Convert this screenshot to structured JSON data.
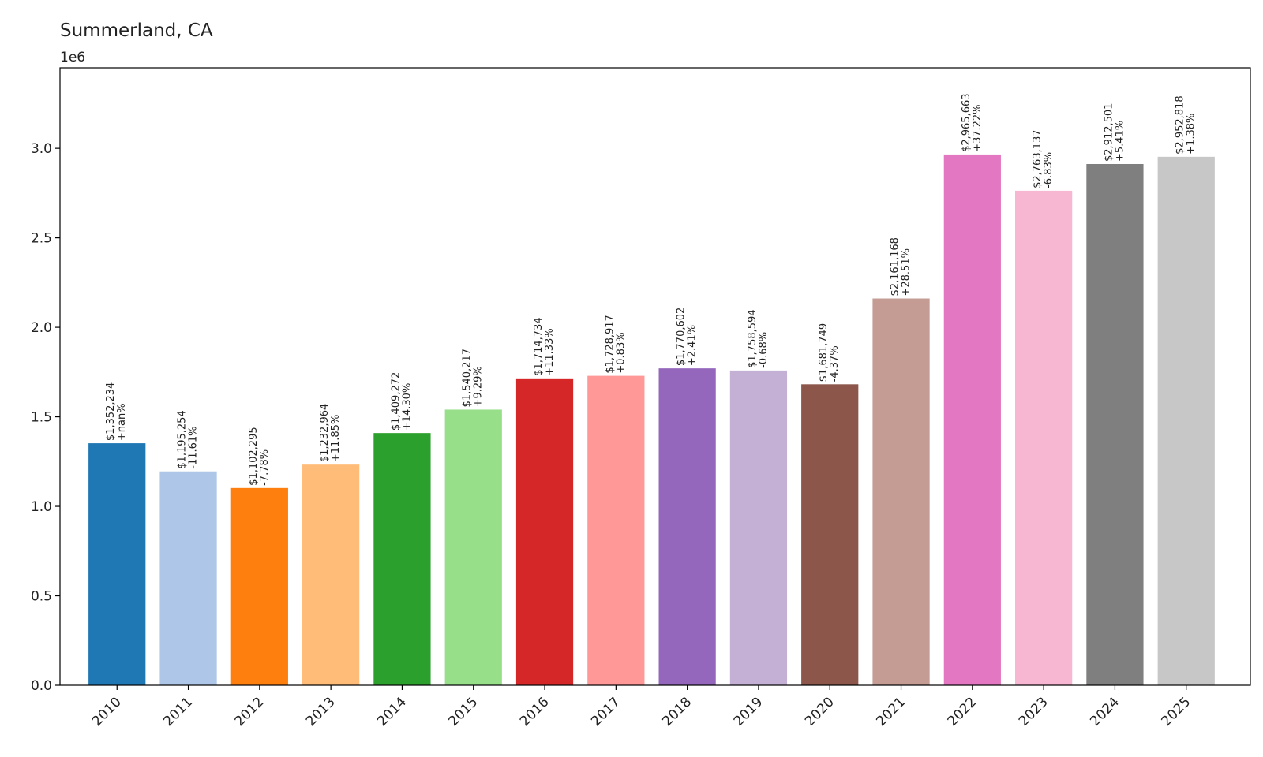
{
  "chart_data": {
    "type": "bar",
    "title": "Summerland, CA",
    "xlabel": "",
    "ylabel": "",
    "y_offset_label": "1e6",
    "ylim": [
      0,
      3.45
    ],
    "yticks": [
      "0.0",
      "0.5",
      "1.0",
      "1.5",
      "2.0",
      "2.5",
      "3.0"
    ],
    "grid": false,
    "categories": [
      "2010",
      "2011",
      "2012",
      "2013",
      "2014",
      "2015",
      "2016",
      "2017",
      "2018",
      "2019",
      "2020",
      "2021",
      "2022",
      "2023",
      "2024",
      "2025"
    ],
    "values": [
      1352234,
      1195254,
      1102295,
      1232964,
      1409272,
      1540217,
      1714734,
      1728917,
      1770602,
      1758594,
      1681749,
      2161168,
      2965663,
      2763137,
      2912501,
      2952818
    ],
    "value_labels": [
      "$1,352,234",
      "$1,195,254",
      "$1,102,295",
      "$1,232,964",
      "$1,409,272",
      "$1,540,217",
      "$1,714,734",
      "$1,728,917",
      "$1,770,602",
      "$1,758,594",
      "$1,681,749",
      "$2,161,168",
      "$2,965,663",
      "$2,763,137",
      "$2,912,501",
      "$2,952,818"
    ],
    "change_labels": [
      "+nan%",
      "-11.61%",
      "-7.78%",
      "+11.85%",
      "+14.30%",
      "+9.29%",
      "+11.33%",
      "+0.83%",
      "+2.41%",
      "-0.68%",
      "-4.37%",
      "+28.51%",
      "+37.22%",
      "-6.83%",
      "+5.41%",
      "+1.38%"
    ],
    "colors": [
      "#1f77b4",
      "#aec7e8",
      "#ff7f0e",
      "#ffbb78",
      "#2ca02c",
      "#98df8a",
      "#d62728",
      "#ff9896",
      "#9467bd",
      "#c5b0d5",
      "#8c564b",
      "#c49c94",
      "#e377c2",
      "#f7b6d2",
      "#7f7f7f",
      "#c7c7c7"
    ]
  }
}
